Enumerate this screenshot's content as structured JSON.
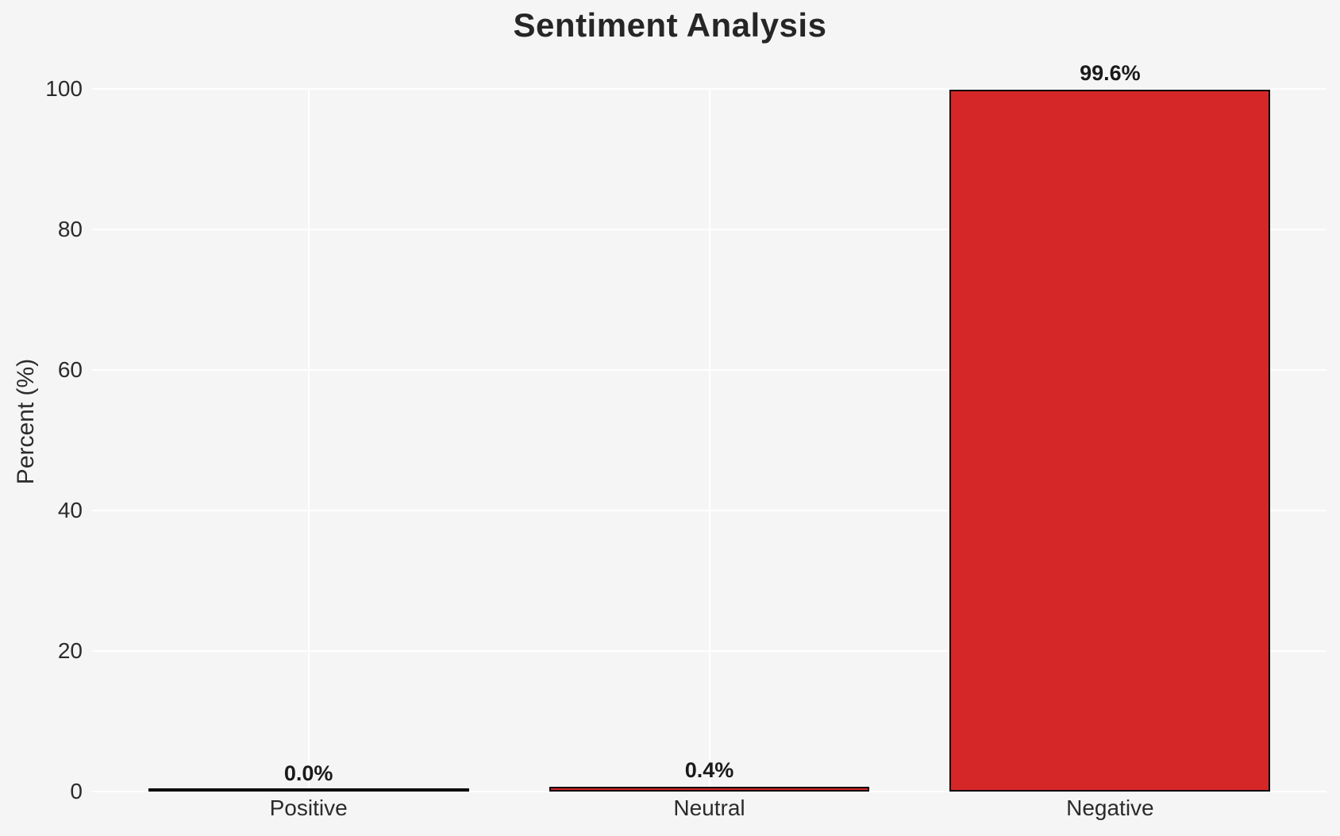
{
  "chart_data": {
    "type": "bar",
    "title": "Sentiment Analysis",
    "xlabel": "",
    "ylabel": "Percent (%)",
    "categories": [
      "Positive",
      "Neutral",
      "Negative"
    ],
    "values": [
      0.0,
      0.4,
      99.6
    ],
    "bar_value_labels": [
      "0.0%",
      "0.4%",
      "99.6%"
    ],
    "yticks": [
      0,
      20,
      40,
      60,
      80,
      100
    ],
    "ytick_labels": [
      "0",
      "20",
      "40",
      "60",
      "80",
      "100"
    ],
    "ylim": [
      0,
      100
    ],
    "grid": true,
    "legend": false,
    "layout_hints": {
      "grid_style": "white gridlines on light gray background",
      "vertical_gridline_per_category": true
    },
    "colors": {
      "background": "#f5f5f6",
      "grid": "#ffffff",
      "bar_fill": "#d62728",
      "bar_edge": "#000000",
      "title_text": "#262626",
      "axis_text": "#2b2b2b",
      "value_label_text": "#1a1a1a"
    }
  }
}
